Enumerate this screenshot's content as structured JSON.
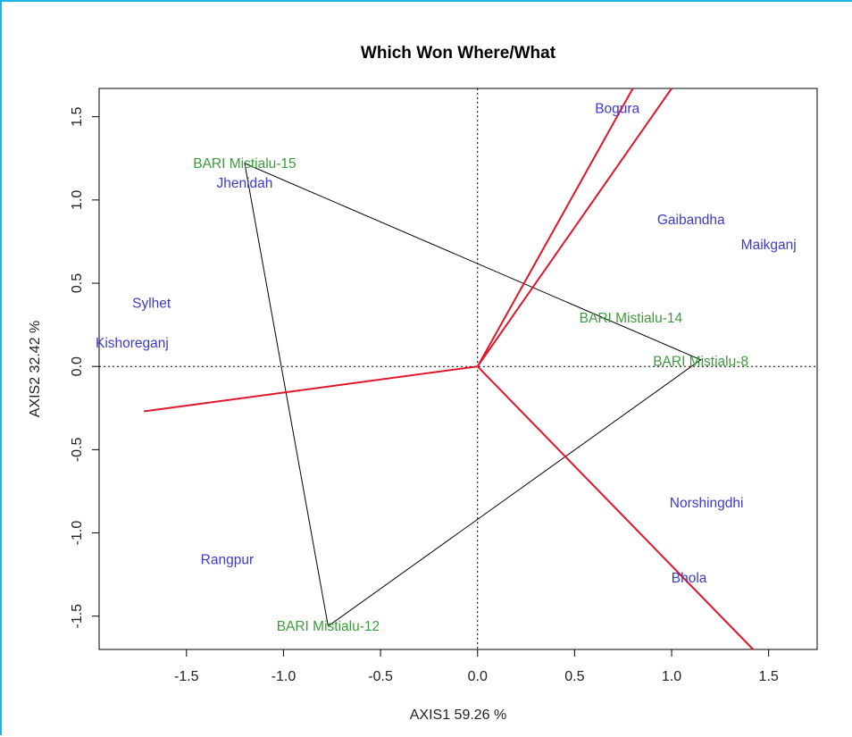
{
  "chart_data": {
    "type": "scatter",
    "title": "Which Won Where/What",
    "xlabel": "AXIS1 59.26 %",
    "ylabel": "AXIS2 32.42 %",
    "xlim": [
      -1.95,
      1.75
    ],
    "ylim": [
      -1.7,
      1.67
    ],
    "xticks": [
      -1.5,
      -1.0,
      -0.5,
      0.0,
      0.5,
      1.0,
      1.5
    ],
    "yticks": [
      -1.5,
      -1.0,
      -0.5,
      0.0,
      0.5,
      1.0,
      1.5
    ],
    "xtick_labels": [
      "-1.5",
      "-1.0",
      "-0.5",
      "0.0",
      "0.5",
      "1.0",
      "1.5"
    ],
    "ytick_labels": [
      "-1.5",
      "-1.0",
      "-0.5",
      "0.0",
      "0.5",
      "1.0",
      "1.5"
    ],
    "reference_lines": {
      "x": 0.0,
      "y": 0.0,
      "style": "dotted"
    },
    "colors": {
      "environment": "#3b3bc9",
      "genotype": "#3f9a3f",
      "hull": "#000000",
      "sector": "#e0162b"
    },
    "environments": [
      {
        "name": "Bogura",
        "x": 0.72,
        "y": 1.55
      },
      {
        "name": "Gaibandha",
        "x": 1.1,
        "y": 0.88
      },
      {
        "name": "Maikganj",
        "x": 1.5,
        "y": 0.73
      },
      {
        "name": "Jhenidah",
        "x": -1.2,
        "y": 1.1
      },
      {
        "name": "Sylhet",
        "x": -1.68,
        "y": 0.38
      },
      {
        "name": "Kishoreganj",
        "x": -1.78,
        "y": 0.14
      },
      {
        "name": "Norshingdhi",
        "x": 1.18,
        "y": -0.82
      },
      {
        "name": "Bhola",
        "x": 1.09,
        "y": -1.27
      },
      {
        "name": "Rangpur",
        "x": -1.29,
        "y": -1.16
      }
    ],
    "genotypes": [
      {
        "name": "BARI Mistialu-15",
        "x": -1.2,
        "y": 1.22
      },
      {
        "name": "BARI Mistialu-14",
        "x": 0.79,
        "y": 0.29
      },
      {
        "name": "BARI Mistialu-8",
        "x": 1.15,
        "y": 0.03
      },
      {
        "name": "BARI Mistialu-12",
        "x": -0.77,
        "y": -1.56
      }
    ],
    "hull": [
      [
        -1.2,
        1.22
      ],
      [
        1.15,
        0.04
      ],
      [
        -0.77,
        -1.56
      ]
    ],
    "sector_rays": [
      {
        "from": [
          0,
          0
        ],
        "to": [
          0.8,
          1.67
        ]
      },
      {
        "from": [
          0,
          0
        ],
        "to": [
          1.0,
          1.67
        ]
      },
      {
        "from": [
          0,
          0
        ],
        "to": [
          -1.72,
          -0.27
        ]
      },
      {
        "from": [
          0,
          0
        ],
        "to": [
          1.42,
          -1.72
        ]
      }
    ]
  }
}
